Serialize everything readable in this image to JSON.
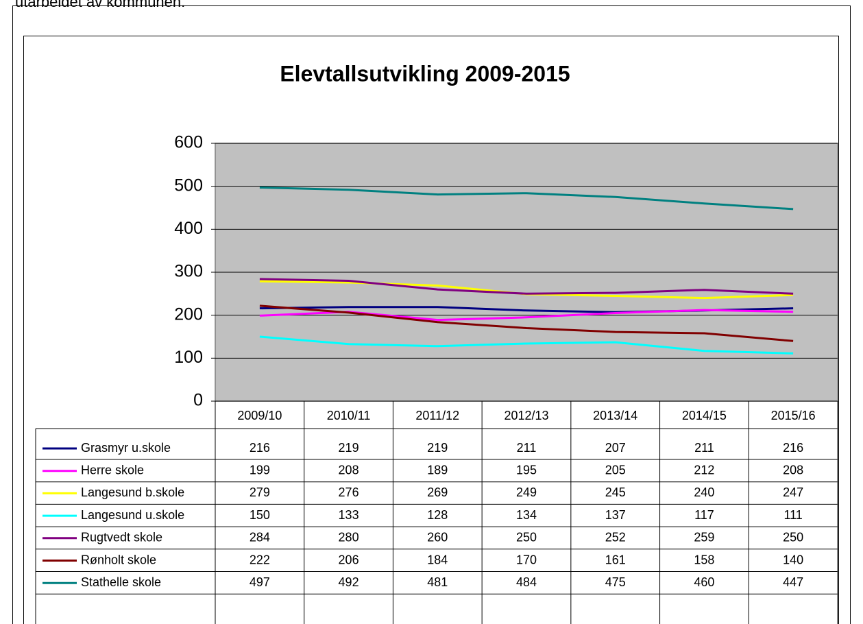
{
  "intro_text": "utarbeidet av kommunen.",
  "chart_data": {
    "type": "line",
    "title": "Elevtallsutvikling 2009-2015",
    "categories": [
      "2009/10",
      "2010/11",
      "2011/12",
      "2012/13",
      "2013/14",
      "2014/15",
      "2015/16"
    ],
    "ylim": [
      0,
      600
    ],
    "yticks": [
      0,
      100,
      200,
      300,
      400,
      500,
      600
    ],
    "grid": true,
    "series": [
      {
        "name": "Grasmyr u.skole",
        "color": "#000080",
        "values": [
          216,
          219,
          219,
          211,
          207,
          211,
          216
        ]
      },
      {
        "name": "Herre skole",
        "color": "#ff00ff",
        "values": [
          199,
          208,
          189,
          195,
          205,
          212,
          208
        ]
      },
      {
        "name": "Langesund b.skole",
        "color": "#ffff00",
        "values": [
          279,
          276,
          269,
          249,
          245,
          240,
          247
        ]
      },
      {
        "name": "Langesund u.skole",
        "color": "#00ffff",
        "values": [
          150,
          133,
          128,
          134,
          137,
          117,
          111
        ]
      },
      {
        "name": "Rugtvedt skole",
        "color": "#800080",
        "values": [
          284,
          280,
          260,
          250,
          252,
          259,
          250
        ]
      },
      {
        "name": "Rønholt skole",
        "color": "#800000",
        "values": [
          222,
          206,
          184,
          170,
          161,
          158,
          140
        ]
      },
      {
        "name": "Stathelle skole",
        "color": "#008080",
        "values": [
          497,
          492,
          481,
          484,
          475,
          460,
          447
        ]
      }
    ]
  }
}
